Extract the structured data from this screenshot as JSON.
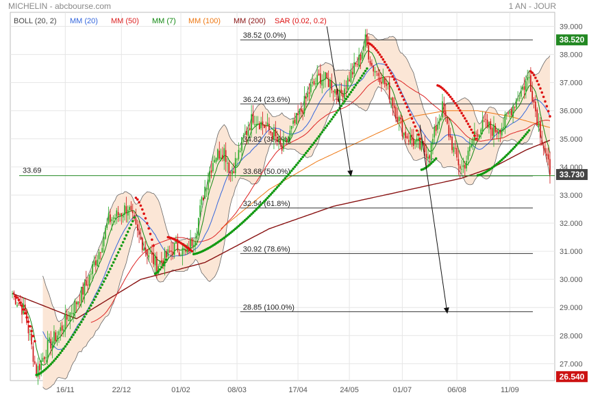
{
  "header": {
    "left_title": "MICHELIN - abcbourse.com",
    "right_title": "1 AN - JOUR"
  },
  "colors": {
    "ma20": "#3366dd",
    "ma50": "#dd2222",
    "ma7": "#118811",
    "ma100": "#ee7711",
    "ma200": "#881111",
    "sar_up": "#119911",
    "sar_down": "#dd1111",
    "boll_fill": "#fbe6d6",
    "boll_line": "#666666",
    "candle_up": "#22aa22",
    "candle_down": "#cc1111",
    "last_price_bg": "#444444",
    "high_bg": "#228822",
    "low_bg": "#cc1111",
    "hline": "#228822"
  },
  "chart_data": {
    "type": "candlestick",
    "indicators": [
      {
        "label": "BOLL (20, 2)",
        "color": "#444444"
      },
      {
        "label": "MM (20)",
        "color": "#3366dd"
      },
      {
        "label": "MM (50)",
        "color": "#dd2222"
      },
      {
        "label": "MM (7)",
        "color": "#118811"
      },
      {
        "label": "MM (100)",
        "color": "#ee7711"
      },
      {
        "label": "MM (200)",
        "color": "#881111"
      },
      {
        "label": "SAR (0.02, 0.2)",
        "color": "#dd1111"
      }
    ],
    "y_ticks": [
      "39.000",
      "38.000",
      "37.000",
      "36.000",
      "35.000",
      "34.000",
      "33.000",
      "32.000",
      "31.000",
      "30.000",
      "29.000",
      "28.000",
      "27.000"
    ],
    "y_tick_values": [
      39,
      38,
      37,
      36,
      35,
      34,
      33,
      32,
      31,
      30,
      29,
      28,
      27
    ],
    "ylim": [
      26.4,
      39.5
    ],
    "x_labels": [
      {
        "label": "16/11",
        "index": 33
      },
      {
        "label": "22/12",
        "index": 68
      },
      {
        "label": "01/02",
        "index": 105
      },
      {
        "label": "08/03",
        "index": 140
      },
      {
        "label": "17/04",
        "index": 178
      },
      {
        "label": "24/05",
        "index": 210
      },
      {
        "label": "01/07",
        "index": 243
      },
      {
        "label": "06/08",
        "index": 277
      },
      {
        "label": "11/09",
        "index": 310
      }
    ],
    "n_points": 336,
    "close_anchors": [
      [
        0,
        29.5
      ],
      [
        8,
        28.8
      ],
      [
        15,
        26.7
      ],
      [
        22,
        27.6
      ],
      [
        30,
        28.2
      ],
      [
        38,
        29.0
      ],
      [
        46,
        29.8
      ],
      [
        54,
        31.0
      ],
      [
        60,
        32.1
      ],
      [
        66,
        32.3
      ],
      [
        72,
        32.6
      ],
      [
        78,
        31.6
      ],
      [
        84,
        31.0
      ],
      [
        90,
        30.5
      ],
      [
        96,
        30.8
      ],
      [
        102,
        31.2
      ],
      [
        108,
        30.9
      ],
      [
        114,
        31.6
      ],
      [
        120,
        33.3
      ],
      [
        126,
        34.4
      ],
      [
        132,
        34.6
      ],
      [
        136,
        33.8
      ],
      [
        140,
        34.3
      ],
      [
        144,
        35.0
      ],
      [
        150,
        35.8
      ],
      [
        156,
        35.5
      ],
      [
        162,
        35.2
      ],
      [
        168,
        34.6
      ],
      [
        174,
        35.3
      ],
      [
        180,
        36.0
      ],
      [
        186,
        36.8
      ],
      [
        192,
        37.2
      ],
      [
        198,
        37.0
      ],
      [
        204,
        36.5
      ],
      [
        210,
        37.2
      ],
      [
        216,
        37.8
      ],
      [
        220,
        38.5
      ],
      [
        224,
        37.6
      ],
      [
        230,
        37.2
      ],
      [
        236,
        36.5
      ],
      [
        240,
        35.8
      ],
      [
        244,
        35.2
      ],
      [
        250,
        34.9
      ],
      [
        256,
        34.6
      ],
      [
        260,
        34.5
      ],
      [
        264,
        35.4
      ],
      [
        268,
        36.1
      ],
      [
        272,
        35.2
      ],
      [
        276,
        34.4
      ],
      [
        280,
        33.9
      ],
      [
        284,
        34.4
      ],
      [
        288,
        35.2
      ],
      [
        294,
        35.5
      ],
      [
        300,
        35.3
      ],
      [
        306,
        35.5
      ],
      [
        312,
        36.2
      ],
      [
        318,
        36.8
      ],
      [
        322,
        37.2
      ],
      [
        326,
        36.0
      ],
      [
        330,
        35.0
      ],
      [
        333,
        34.3
      ],
      [
        335,
        33.73
      ]
    ],
    "ma200_anchors": [
      [
        0,
        29.5
      ],
      [
        40,
        28.6
      ],
      [
        80,
        30.0
      ],
      [
        120,
        30.6
      ],
      [
        160,
        31.8
      ],
      [
        200,
        32.6
      ],
      [
        240,
        33.1
      ],
      [
        280,
        33.6
      ],
      [
        300,
        34.0
      ],
      [
        320,
        34.6
      ],
      [
        335,
        34.95
      ]
    ],
    "ma100_anchors": [
      [
        130,
        31.8
      ],
      [
        160,
        33.2
      ],
      [
        190,
        34.2
      ],
      [
        220,
        35.0
      ],
      [
        250,
        35.8
      ],
      [
        270,
        36.0
      ],
      [
        290,
        36.0
      ],
      [
        310,
        35.8
      ],
      [
        335,
        35.4
      ]
    ],
    "sar_segments": [
      {
        "trend": "down",
        "start": 2,
        "end": 14,
        "from": 29.4,
        "to": 27.8
      },
      {
        "trend": "up",
        "start": 15,
        "end": 76,
        "from": 26.6,
        "to": 32.2
      },
      {
        "trend": "down",
        "start": 77,
        "end": 88,
        "from": 32.9,
        "to": 31.2
      },
      {
        "trend": "up",
        "start": 89,
        "end": 96,
        "from": 30.2,
        "to": 30.7
      },
      {
        "trend": "down",
        "start": 97,
        "end": 112,
        "from": 31.5,
        "to": 31.0
      },
      {
        "trend": "up",
        "start": 113,
        "end": 221,
        "from": 30.9,
        "to": 37.5
      },
      {
        "trend": "down",
        "start": 222,
        "end": 254,
        "from": 38.4,
        "to": 35.0
      },
      {
        "trend": "up",
        "start": 255,
        "end": 264,
        "from": 33.9,
        "to": 34.3
      },
      {
        "trend": "down",
        "start": 265,
        "end": 289,
        "from": 36.9,
        "to": 35.0
      },
      {
        "trend": "up",
        "start": 290,
        "end": 322,
        "from": 33.7,
        "to": 35.3
      },
      {
        "trend": "down",
        "start": 323,
        "end": 335,
        "from": 37.4,
        "to": 35.8
      }
    ],
    "fibonacci": [
      {
        "value": 38.52,
        "label": "38.52  (0.0%)"
      },
      {
        "value": 36.24,
        "label": "36.24  (23.6%)"
      },
      {
        "value": 34.82,
        "label": "34.82  (38.2%)"
      },
      {
        "value": 33.68,
        "label": "33.68  (50.0%)"
      },
      {
        "value": 32.54,
        "label": "32.54  (61.8%)"
      },
      {
        "value": 30.92,
        "label": "30.92  (78.6%)"
      },
      {
        "value": 28.85,
        "label": "28.85  (100.0%)"
      }
    ],
    "fib_start_index": 142,
    "arrows": [
      {
        "from_index": 196,
        "from_value": 39.0,
        "to_index": 211,
        "to_value": 33.68
      },
      {
        "from_index": 254,
        "from_value": 35.5,
        "to_index": 271,
        "to_value": 28.8
      }
    ],
    "hline": {
      "value": 33.69,
      "label": "33.69"
    },
    "last_price": {
      "value": 33.73,
      "label": "33.730"
    },
    "high": {
      "value": 38.52,
      "label": "38.520"
    },
    "low": {
      "value": 26.54,
      "label": "26.540"
    }
  }
}
